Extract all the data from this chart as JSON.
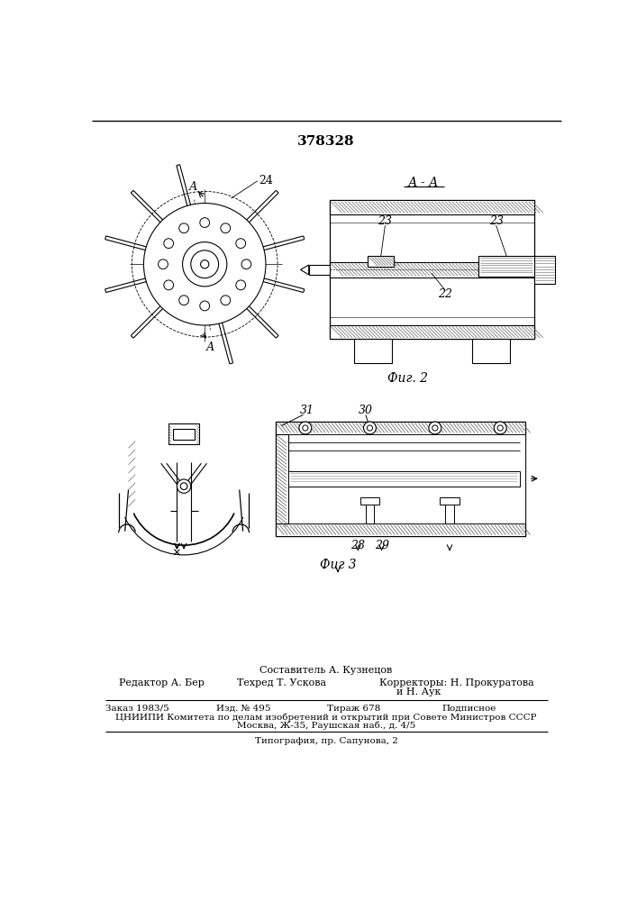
{
  "title_number": "378328",
  "section_label_aa": "А - А",
  "fig2_label": "Фиг. 2",
  "fig3_label": "Фиг 3",
  "footer_composer": "Составитель А. Кузнецов",
  "footer_editor": "Редактор А. Бер",
  "footer_tech": "Техред Т. Ускова",
  "footer_correctors": "Корректоры: Н. Прокуратова",
  "footer_correctors2": "и Н. Аук",
  "footer_order": "Заказ 1983/5",
  "footer_pub": "Изд. № 495",
  "footer_print": "Тираж 678",
  "footer_sub": "Подписное",
  "footer_org": "ЦНИИПИ Комитета по делам изобретений и открытий при Совете Министров СССР",
  "footer_addr": "Москва, Ж-35, Раушская наб., д. 4/5",
  "footer_typo": "Типография, пр. Сапунова, 2",
  "bg_color": "#ffffff",
  "line_color": "#000000"
}
